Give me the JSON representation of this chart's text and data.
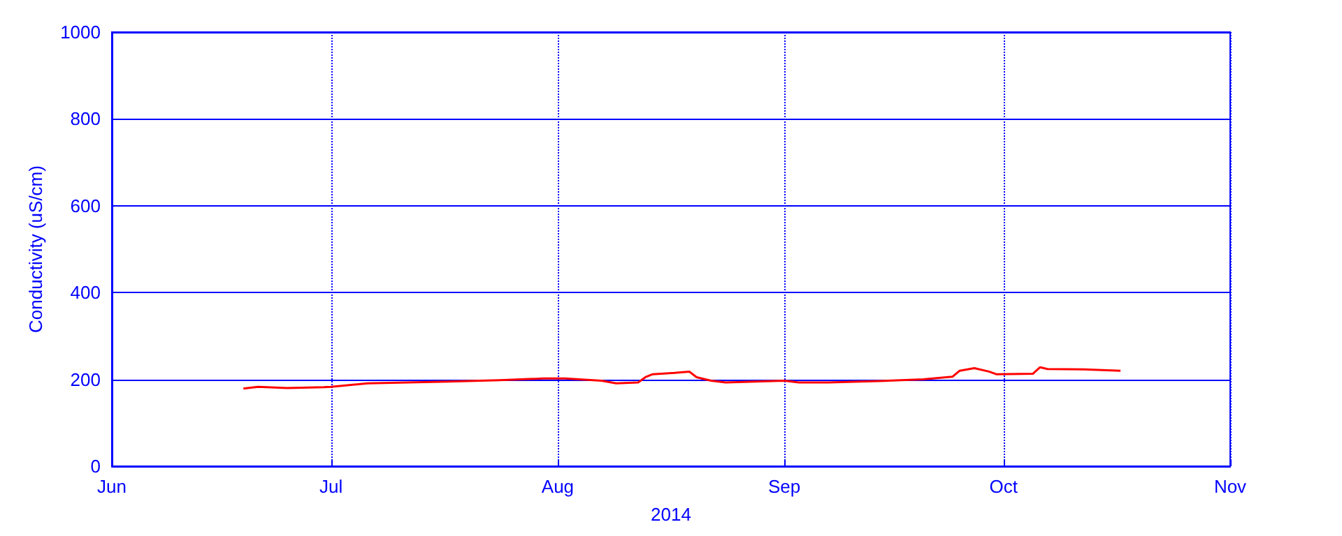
{
  "chart_data": {
    "type": "line",
    "xlabel": "2014",
    "ylabel": "Conductivity (uS/cm)",
    "x": [
      "2014-06-19",
      "2014-06-21",
      "2014-06-25",
      "2014-06-30",
      "2014-07-01",
      "2014-07-06",
      "2014-07-17",
      "2014-07-24",
      "2014-07-30",
      "2014-08-02",
      "2014-08-07",
      "2014-08-09",
      "2014-08-12",
      "2014-08-13",
      "2014-08-14",
      "2014-08-17",
      "2014-08-19",
      "2014-08-20",
      "2014-08-22",
      "2014-08-24",
      "2014-09-01",
      "2014-09-03",
      "2014-09-07",
      "2014-09-14",
      "2014-09-20",
      "2014-09-24",
      "2014-09-25",
      "2014-09-27",
      "2014-09-29",
      "2014-09-30",
      "2014-10-05",
      "2014-10-06",
      "2014-10-07",
      "2014-10-12",
      "2014-10-17"
    ],
    "series": [
      {
        "color": "#ff0000",
        "values": [
          179,
          183,
          180,
          182,
          183,
          191,
          195,
          198,
          202,
          202,
          197,
          191,
          193,
          205,
          212,
          215,
          218,
          205,
          197,
          193,
          197,
          193,
          193,
          196,
          200,
          206,
          220,
          226,
          218,
          212,
          213,
          228,
          224,
          223,
          220
        ]
      }
    ],
    "xlim": [
      "2014-06-01",
      "2014-11-01"
    ],
    "xticks": [
      {
        "value": "2014-06-01",
        "label": "Jun"
      },
      {
        "value": "2014-07-01",
        "label": "Jul"
      },
      {
        "value": "2014-08-01",
        "label": "Aug"
      },
      {
        "value": "2014-09-01",
        "label": "Sep"
      },
      {
        "value": "2014-10-01",
        "label": "Oct"
      },
      {
        "value": "2014-11-01",
        "label": "Nov"
      }
    ],
    "ylim": [
      0,
      1000
    ],
    "yticks": [
      0,
      200,
      400,
      600,
      800,
      1000
    ],
    "grid": true,
    "marker": "none",
    "line_style": "solid"
  }
}
